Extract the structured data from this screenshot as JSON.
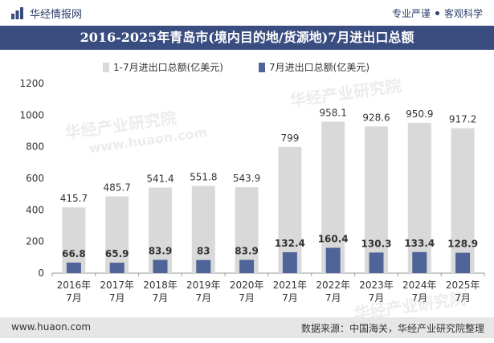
{
  "header": {
    "brand": "华经情报网",
    "slogan_left": "专业严谨",
    "slogan_right": "客观科学"
  },
  "title": "2016-2025年青岛市(境内目的地/货源地)7月进出口总额",
  "footer": {
    "url": "www.huaon.com",
    "source": "数据来源：中国海关，华经产业研究院整理"
  },
  "watermarks": [
    "华经产业研究院",
    "www.huaon.com"
  ],
  "chart_data": {
    "type": "bar",
    "categories": [
      [
        "2016年",
        "7月"
      ],
      [
        "2017年",
        "7月"
      ],
      [
        "2018年",
        "7月"
      ],
      [
        "2019年",
        "7月"
      ],
      [
        "2020年",
        "7月"
      ],
      [
        "2021年",
        "7月"
      ],
      [
        "2022年",
        "7月"
      ],
      [
        "2023年",
        "7月"
      ],
      [
        "2024年",
        "7月"
      ],
      [
        "2025年",
        "7月"
      ]
    ],
    "series": [
      {
        "name": "1-7月进出口总额(亿美元)",
        "color": "#d9d9d9",
        "values": [
          415.7,
          485.7,
          541.4,
          551.8,
          543.9,
          799,
          958.1,
          928.6,
          950.9,
          917.2
        ]
      },
      {
        "name": "7月进出口总额(亿美元)",
        "color": "#4f6498",
        "values": [
          66.8,
          65.9,
          83.9,
          83,
          83.9,
          132.4,
          160.4,
          130.3,
          133.4,
          128.9
        ]
      }
    ],
    "ylim": [
      0,
      1200
    ],
    "yticks": [
      0,
      200,
      400,
      600,
      800,
      1000,
      1200
    ],
    "grid": false,
    "legend_position": "top-center"
  }
}
